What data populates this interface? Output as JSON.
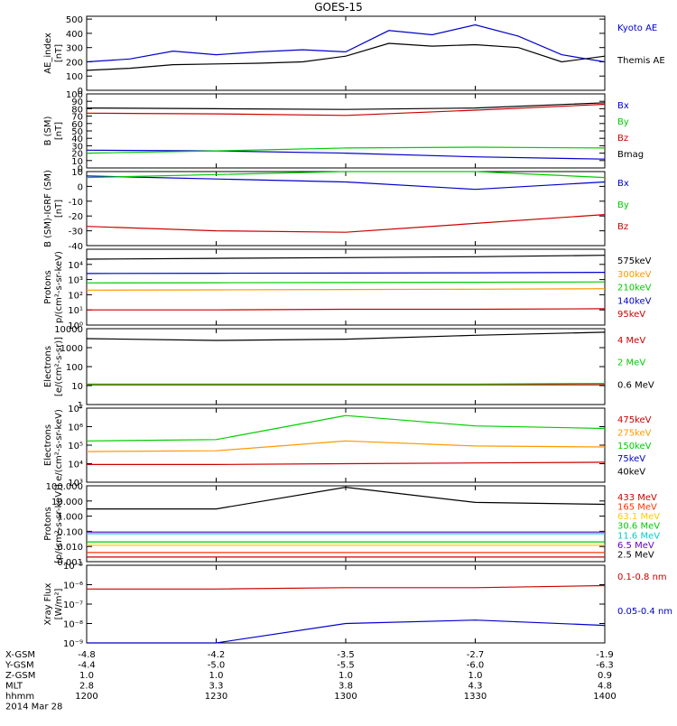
{
  "chart_data": {
    "type": "line",
    "title": "GOES-15",
    "x": {
      "hhmm": [
        "1200",
        "1230",
        "1300",
        "1330",
        "1400"
      ],
      "range": [
        "1200",
        "1400"
      ]
    },
    "footer": {
      "row_labels": [
        "X-GSM",
        "Y-GSM",
        "Z-GSM",
        "MLT",
        "hhmm",
        "2014 Mar 28"
      ],
      "rows": [
        [
          "-4.8",
          "-4.2",
          "-3.5",
          "-2.7",
          "-1.9"
        ],
        [
          "-4.4",
          "-5.0",
          "-5.5",
          "-6.0",
          "-6.3"
        ],
        [
          "1.0",
          "1.0",
          "1.0",
          "1.0",
          "0.9"
        ],
        [
          "2.8",
          "3.3",
          "3.8",
          "4.3",
          "4.8"
        ],
        [
          "1200",
          "1230",
          "1300",
          "1330",
          "1400"
        ]
      ]
    },
    "panels": [
      {
        "ylabel": [
          "AE_index",
          "[nT]"
        ],
        "scale": "linear",
        "ylim": [
          0,
          520
        ],
        "ticks": [
          0,
          100,
          200,
          300,
          400,
          500
        ],
        "tick_labels": [
          "0",
          "100",
          "200",
          "300",
          "400",
          "500"
        ],
        "series": [
          {
            "name": "Kyoto AE",
            "color": "#0000cc",
            "t": [
              0,
              10,
              20,
              30,
              40,
              50,
              60,
              70,
              80,
              90,
              100,
              110,
              120
            ],
            "values": [
              200,
              220,
              275,
              250,
              270,
              285,
              270,
              420,
              390,
              460,
              380,
              250,
              200
            ]
          },
          {
            "name": "Themis AE",
            "color": "#000000",
            "t": [
              0,
              10,
              20,
              30,
              40,
              50,
              60,
              70,
              80,
              90,
              100,
              110,
              120
            ],
            "values": [
              140,
              155,
              180,
              185,
              190,
              200,
              240,
              330,
              310,
              320,
              300,
              200,
              240
            ]
          }
        ]
      },
      {
        "ylabel": [
          "B (SM)",
          "[nT]"
        ],
        "scale": "linear",
        "ylim": [
          0,
          100
        ],
        "ticks": [
          0,
          10,
          20,
          30,
          40,
          50,
          60,
          70,
          80,
          90,
          100
        ],
        "tick_labels": [
          "0",
          "10",
          "20",
          "30",
          "40",
          "50",
          "60",
          "70",
          "80",
          "90",
          "100"
        ],
        "series": [
          {
            "name": "Bx",
            "color": "#0000cc",
            "t": [
              0,
              30,
              60,
              90,
              120
            ],
            "values": [
              24,
              23,
              20,
              15,
              12
            ]
          },
          {
            "name": "By",
            "color": "#00cc00",
            "t": [
              0,
              30,
              60,
              90,
              120
            ],
            "values": [
              20,
              23,
              27,
              28,
              27
            ]
          },
          {
            "name": "Bz",
            "color": "#cc0000",
            "t": [
              0,
              30,
              60,
              90,
              120
            ],
            "values": [
              74,
              73,
              71,
              78,
              86
            ]
          },
          {
            "name": "Bmag",
            "color": "#000000",
            "t": [
              0,
              30,
              60,
              90,
              120
            ],
            "values": [
              81,
              80,
              79,
              81,
              88
            ]
          }
        ]
      },
      {
        "ylabel": [
          "B (SM)-IGRF (SM)",
          "[nT]"
        ],
        "scale": "linear",
        "ylim": [
          -40,
          10
        ],
        "ticks": [
          -40,
          -30,
          -20,
          -10,
          0,
          10
        ],
        "tick_labels": [
          "-40",
          "-30",
          "-20",
          "-10",
          "0",
          "10"
        ],
        "series": [
          {
            "name": "Bx",
            "color": "#0000cc",
            "t": [
              0,
              30,
              60,
              90,
              120
            ],
            "values": [
              7,
              5,
              3,
              -2,
              3
            ]
          },
          {
            "name": "By",
            "color": "#00cc00",
            "t": [
              0,
              30,
              60,
              90,
              120
            ],
            "values": [
              6,
              8,
              10,
              10,
              6
            ]
          },
          {
            "name": "Bz",
            "color": "#cc0000",
            "t": [
              0,
              30,
              60,
              90,
              120
            ],
            "values": [
              -27,
              -30,
              -31,
              -25,
              -19
            ]
          }
        ]
      },
      {
        "ylabel": [
          "Protons",
          "p/(cm²-s-sr-keV)"
        ],
        "scale": "log",
        "ylim": [
          1,
          100000
        ],
        "ticks": [
          1,
          10,
          100,
          1000,
          10000
        ],
        "tick_labels": [
          "10⁰",
          "10¹",
          "10²",
          "10³",
          "10⁴"
        ],
        "series": [
          {
            "name": "575keV",
            "color": "#000000",
            "t": [
              0,
              30,
              60,
              90,
              120
            ],
            "values": [
              22000,
              25000,
              28000,
              32000,
              40000
            ]
          },
          {
            "name": "300keV",
            "color": "#ff9900",
            "t": [
              0,
              30,
              60,
              90,
              120
            ],
            "values": [
              200,
              210,
              220,
              230,
              250
            ]
          },
          {
            "name": "210keV",
            "color": "#00cc00",
            "t": [
              0,
              30,
              60,
              90,
              120
            ],
            "values": [
              600,
              620,
              640,
              660,
              700
            ]
          },
          {
            "name": "140keV",
            "color": "#0000cc",
            "t": [
              0,
              30,
              60,
              90,
              120
            ],
            "values": [
              2500,
              2600,
              2700,
              2800,
              3000
            ]
          },
          {
            "name": "95keV",
            "color": "#cc0000",
            "t": [
              0,
              30,
              60,
              90,
              120
            ],
            "values": [
              10,
              10,
              11,
              11,
              12
            ]
          }
        ]
      },
      {
        "ylabel": [
          "Electrons",
          "[e/(cm²-s-sr)]"
        ],
        "scale": "log",
        "ylim": [
          1,
          10000
        ],
        "ticks": [
          1,
          10,
          100,
          1000,
          10000
        ],
        "tick_labels": [
          "1",
          "10",
          "100",
          "1000",
          "10000"
        ],
        "series": [
          {
            "name": "4 MeV",
            "color": "#cc0000",
            "t": [
              0,
              30,
              60,
              90,
              120
            ],
            "values": [
              11,
              11,
              11,
              11,
              11
            ]
          },
          {
            "name": "2 MeV",
            "color": "#00cc00",
            "t": [
              0,
              30,
              60,
              90,
              120
            ],
            "values": [
              12,
              12,
              12,
              12,
              13
            ]
          },
          {
            "name": "0.6 MeV",
            "color": "#000000",
            "t": [
              0,
              30,
              60,
              90,
              120
            ],
            "values": [
              3000,
              2400,
              2800,
              4500,
              6500
            ]
          }
        ]
      },
      {
        "ylabel": [
          "Electrons",
          "e/(cm²-s-sr-keV)"
        ],
        "scale": "log",
        "ylim": [
          1000,
          10000000
        ],
        "ticks": [
          1000,
          10000,
          100000,
          1000000,
          10000000
        ],
        "tick_labels": [
          "10³",
          "10⁴",
          "10⁵",
          "10⁶",
          "10⁷"
        ],
        "series": [
          {
            "name": "475keV",
            "color": "#cc0000",
            "t": [
              0,
              30,
              60,
              90,
              120
            ],
            "values": [
              9000,
              9000,
              10000,
              11000,
              12000
            ]
          },
          {
            "name": "275keV",
            "color": "#ff9900",
            "t": [
              0,
              30,
              60,
              90,
              120
            ],
            "values": [
              45000,
              50000,
              170000,
              90000,
              80000
            ]
          },
          {
            "name": "150keV",
            "color": "#00cc00",
            "t": [
              0,
              30,
              60,
              90,
              120
            ],
            "values": [
              170000,
              200000,
              4000000,
              1100000,
              800000
            ]
          },
          {
            "name": "75keV",
            "color": "#0000cc",
            "t": [],
            "values": []
          },
          {
            "name": "40keV",
            "color": "#000000",
            "t": [],
            "values": []
          }
        ]
      },
      {
        "ylabel": [
          "Protons",
          "[p/(cm²-s-sr-keV)]"
        ],
        "scale": "log",
        "ylim": [
          0.001,
          100
        ],
        "ticks": [
          0.001,
          0.01,
          0.1,
          1,
          10,
          100
        ],
        "tick_labels": [
          "0.001",
          "0.010",
          "0.100",
          "1.000",
          "10.000",
          "100.000"
        ],
        "series": [
          {
            "name": "433 MeV",
            "color": "#cc0000",
            "t": [
              0,
              30,
              60,
              90,
              120
            ],
            "values": [
              0.002,
              0.002,
              0.002,
              0.002,
              0.002
            ]
          },
          {
            "name": "165 MeV",
            "color": "#ff3300",
            "t": [
              0,
              30,
              60,
              90,
              120
            ],
            "values": [
              0.004,
              0.004,
              0.004,
              0.004,
              0.004
            ]
          },
          {
            "name": "63.1 MeV",
            "color": "#ffcc00",
            "t": [
              0,
              30,
              60,
              90,
              120
            ],
            "values": [
              0.012,
              0.012,
              0.012,
              0.012,
              0.012
            ]
          },
          {
            "name": "30.6 MeV",
            "color": "#00cc00",
            "t": [
              0,
              30,
              60,
              90,
              120
            ],
            "values": [
              0.02,
              0.02,
              0.02,
              0.02,
              0.02
            ]
          },
          {
            "name": "11.6 MeV",
            "color": "#00cccc",
            "t": [
              0,
              30,
              60,
              90,
              120
            ],
            "values": [
              0.07,
              0.07,
              0.07,
              0.07,
              0.07
            ]
          },
          {
            "name": "6.5 MeV",
            "color": "#6600cc",
            "t": [
              0,
              30,
              60,
              90,
              120
            ],
            "values": [
              0.09,
              0.09,
              0.09,
              0.09,
              0.09
            ]
          },
          {
            "name": "2.5 MeV",
            "color": "#000000",
            "t": [
              0,
              30,
              60,
              90,
              120
            ],
            "values": [
              3,
              3,
              80,
              8,
              6
            ]
          }
        ]
      },
      {
        "ylabel": [
          "Xray Flux",
          "[W/m²]"
        ],
        "scale": "log",
        "ylim": [
          1e-09,
          1e-05
        ],
        "ticks": [
          1e-09,
          1e-08,
          1e-07,
          1e-06,
          1e-05
        ],
        "tick_labels": [
          "10⁻⁹",
          "10⁻⁸",
          "10⁻⁷",
          "10⁻⁶",
          "10⁻⁵"
        ],
        "series": [
          {
            "name": "0.1-0.8 nm",
            "color": "#cc0000",
            "t": [
              0,
              30,
              60,
              90,
              120
            ],
            "values": [
              6e-07,
              6e-07,
              7e-07,
              7e-07,
              9e-07
            ]
          },
          {
            "name": "0.05-0.4 nm",
            "color": "#0000cc",
            "t": [
              0,
              30,
              60,
              90,
              120
            ],
            "values": [
              1e-09,
              1e-09,
              1e-08,
              1.5e-08,
              8e-09
            ]
          }
        ]
      }
    ]
  }
}
